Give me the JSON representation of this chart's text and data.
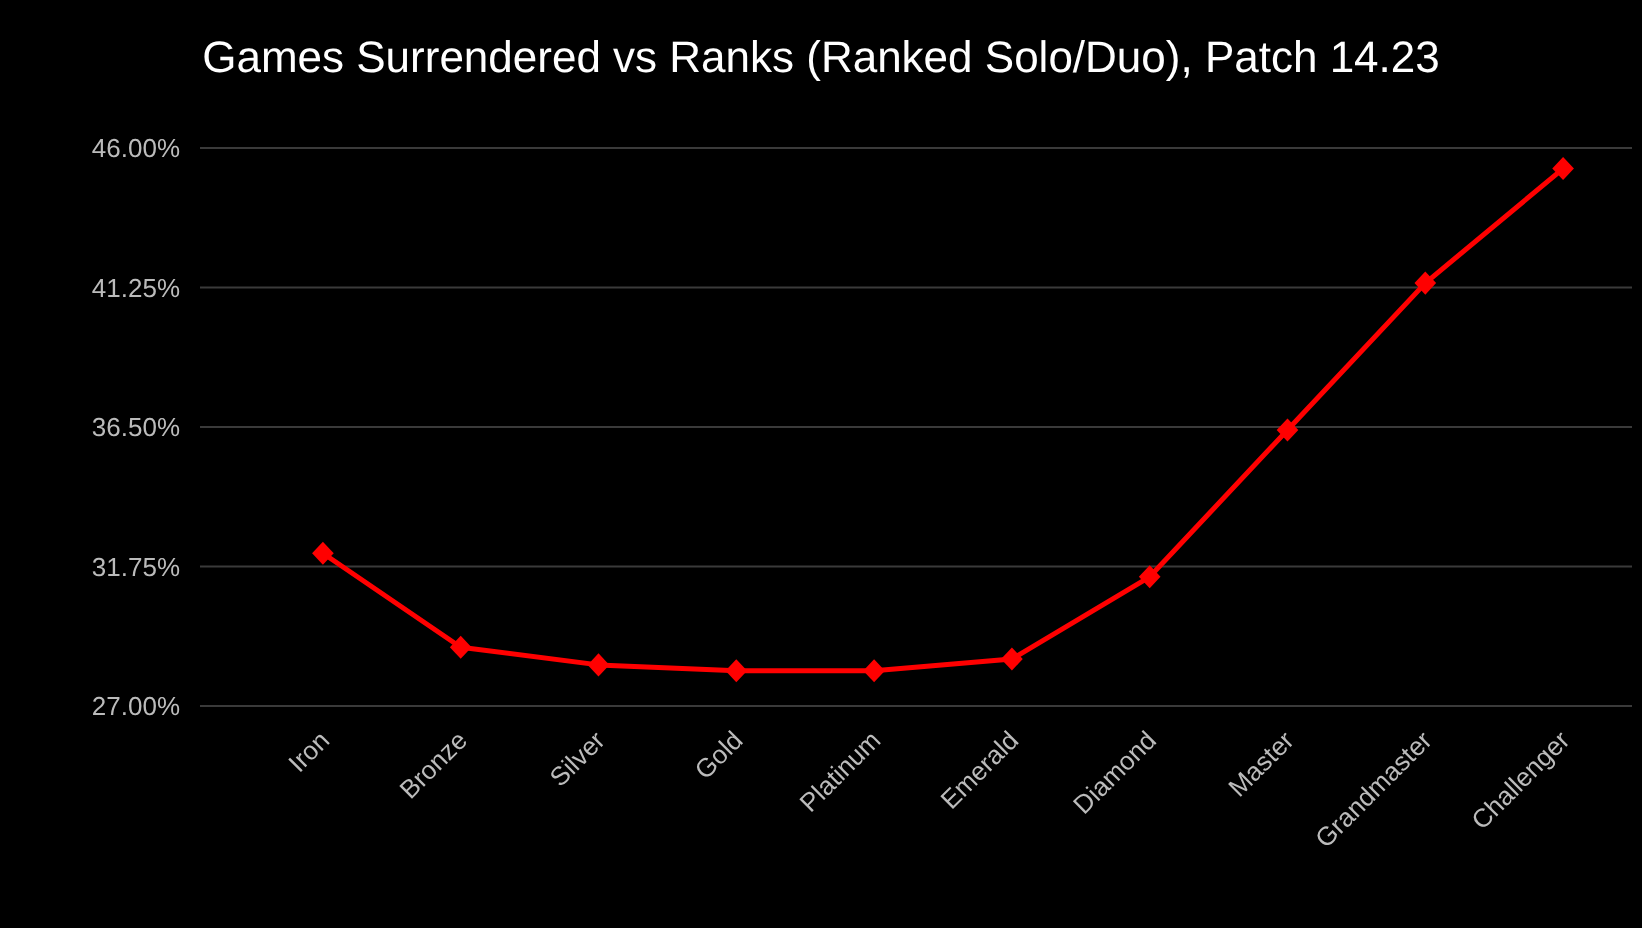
{
  "chart_data": {
    "type": "line",
    "title": "Games Surrendered vs Ranks (Ranked Solo/Duo), Patch 14.23",
    "categories": [
      "Iron",
      "Bronze",
      "Silver",
      "Gold",
      "Platinum",
      "Emerald",
      "Diamond",
      "Master",
      "Grandmaster",
      "Challenger"
    ],
    "series": [
      {
        "color": "#ff0000",
        "values": [
          32.2,
          29.0,
          28.4,
          28.2,
          28.2,
          28.6,
          31.4,
          36.4,
          41.4,
          45.3
        ]
      }
    ],
    "ylim": [
      27,
      46
    ],
    "yticks": [
      {
        "value": 27,
        "label": "27.00%"
      },
      {
        "value": 31.75,
        "label": "31.75%"
      },
      {
        "value": 36.5,
        "label": "36.50%"
      },
      {
        "value": 41.25,
        "label": "41.25%"
      },
      {
        "value": 46,
        "label": "46.00%"
      }
    ],
    "grid": "y",
    "marker": "diamond",
    "line_style": "solid"
  }
}
